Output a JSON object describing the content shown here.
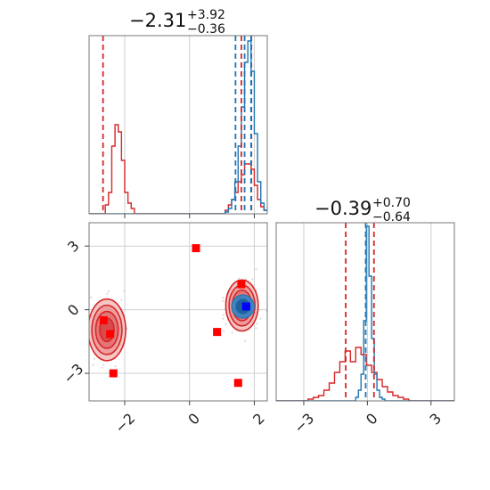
{
  "colors": {
    "red": "#d62728",
    "blue": "#1f77b4",
    "marker_red": "#ff0000",
    "marker_blue": "#0000ff",
    "grid": "#cfcfcf"
  },
  "chart_data": [
    {
      "type": "histogram",
      "panel": "top-left",
      "title": {
        "median": "−2.31",
        "plus": "+3.92",
        "minus": "−0.36"
      },
      "xlim": [
        -3.1,
        2.4
      ],
      "x_grid": [
        -2,
        0,
        2
      ],
      "series": [
        {
          "name": "",
          "color": "red",
          "bin_edges_start": -3.1,
          "bin_width": 0.1,
          "counts": [
            0,
            0,
            0,
            0,
            0,
            0.05,
            0.12,
            0.38,
            0.5,
            0.46,
            0.3,
            0.12,
            0.06,
            0.03,
            0,
            0,
            0,
            0,
            0,
            0,
            0,
            0,
            0,
            0,
            0,
            0,
            0,
            0,
            0,
            0,
            0,
            0,
            0,
            0,
            0,
            0,
            0,
            0,
            0,
            0,
            0,
            0,
            0.02,
            0.05,
            0.08,
            0.12,
            0.18,
            0.22,
            0.28,
            0.28,
            0.25,
            0.16,
            0.08,
            0.04,
            0.02
          ]
        },
        {
          "name": "",
          "color": "blue",
          "bin_edges_start": -3.1,
          "bin_width": 0.1,
          "counts": [
            0,
            0,
            0,
            0,
            0,
            0,
            0,
            0,
            0,
            0,
            0,
            0,
            0,
            0,
            0,
            0,
            0,
            0,
            0,
            0,
            0,
            0,
            0,
            0,
            0,
            0,
            0,
            0,
            0,
            0,
            0,
            0,
            0,
            0,
            0,
            0,
            0,
            0,
            0,
            0,
            0,
            0,
            0.01,
            0.03,
            0.08,
            0.18,
            0.38,
            0.6,
            0.85,
            0.97,
            0.8,
            0.45,
            0.18,
            0.06,
            0.02
          ]
        }
      ],
      "quantile_lines": [
        {
          "color": "red",
          "x": [
            -2.67,
            1.6,
            1.91
          ]
        },
        {
          "color": "blue",
          "x": [
            1.42,
            1.7,
            1.9
          ]
        }
      ]
    },
    {
      "type": "scatter",
      "panel": "bottom-left",
      "xlim": [
        -3.1,
        2.4
      ],
      "ylim": [
        -4.3,
        4.1
      ],
      "x_ticks": [
        -2,
        0,
        2
      ],
      "x_tick_labels": [
        "−2",
        "0",
        "2"
      ],
      "y_ticks": [
        3,
        0,
        -3
      ],
      "y_tick_labels": [
        "3",
        "0",
        "−3"
      ],
      "red_contours": [
        {
          "cx": -2.55,
          "cy": -0.95,
          "rx": 0.58,
          "ry": 1.45
        },
        {
          "cx": 1.62,
          "cy": 0.2,
          "rx": 0.5,
          "ry": 1.2
        }
      ],
      "blue_contour": {
        "cx": 1.65,
        "cy": 0.15,
        "rx": 0.35,
        "ry": 0.55
      },
      "red_markers": [
        {
          "x": 0.2,
          "y": 2.9
        },
        {
          "x": 1.6,
          "y": 1.2
        },
        {
          "x": -2.65,
          "y": -0.5
        },
        {
          "x": -2.45,
          "y": -1.15
        },
        {
          "x": 0.85,
          "y": -1.05
        },
        {
          "x": -2.35,
          "y": -3.0
        },
        {
          "x": 1.5,
          "y": -3.45
        }
      ],
      "blue_marker": {
        "x": 1.75,
        "y": 0.15
      }
    },
    {
      "type": "histogram",
      "panel": "bottom-right",
      "title": {
        "median": "−0.39",
        "plus": "+0.70",
        "minus": "−0.64"
      },
      "xlim": [
        -4.3,
        4.1
      ],
      "x_ticks": [
        -3,
        0,
        3
      ],
      "x_tick_labels": [
        "−3",
        "0",
        "3"
      ],
      "series": [
        {
          "name": "",
          "color": "red",
          "bin_edges_start": -4.3,
          "bin_width": 0.25,
          "counts": [
            0,
            0,
            0,
            0,
            0,
            0,
            0.01,
            0.02,
            0.03,
            0.06,
            0.1,
            0.16,
            0.22,
            0.28,
            0.22,
            0.3,
            0.26,
            0.2,
            0.16,
            0.12,
            0.08,
            0.05,
            0.03,
            0.02,
            0.01,
            0,
            0,
            0,
            0,
            0,
            0,
            0,
            0,
            0
          ]
        },
        {
          "name": "",
          "color": "blue",
          "bin_edges_start": -4.3,
          "bin_width": 0.125,
          "counts": [
            0,
            0,
            0,
            0,
            0,
            0,
            0,
            0,
            0,
            0,
            0,
            0,
            0,
            0,
            0,
            0,
            0,
            0,
            0,
            0,
            0,
            0,
            0,
            0,
            0,
            0,
            0,
            0,
            0,
            0,
            0.02,
            0.06,
            0.15,
            0.45,
            0.98,
            0.7,
            0.35,
            0.15,
            0.06,
            0.02,
            0.01,
            0,
            0,
            0,
            0,
            0,
            0,
            0,
            0,
            0,
            0,
            0,
            0,
            0,
            0,
            0,
            0,
            0,
            0,
            0,
            0,
            0,
            0,
            0,
            0,
            0,
            0
          ]
        }
      ],
      "quantile_lines": [
        {
          "color": "red",
          "x": [
            -1.02,
            0.31
          ]
        },
        {
          "color": "blue",
          "x": [
            -0.08
          ]
        }
      ]
    }
  ]
}
